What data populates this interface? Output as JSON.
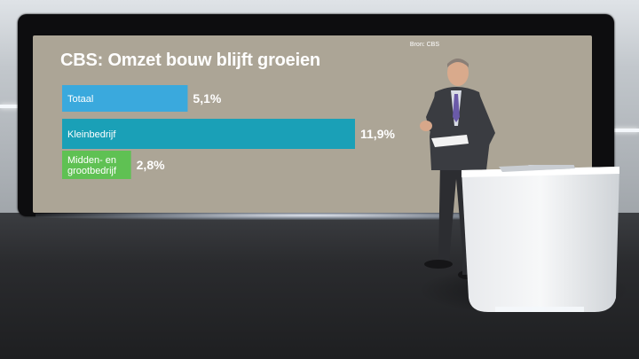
{
  "chart_data": {
    "type": "bar",
    "orientation": "horizontal",
    "title": "CBS: Omzet bouw blijft groeien",
    "source": "Bron: CBS",
    "categories": [
      "Totaal",
      "Kleinbedrijf",
      "Midden- en grootbedrijf"
    ],
    "category_lines": [
      [
        "Totaal"
      ],
      [
        "Kleinbedrijf"
      ],
      [
        "Midden- en",
        "grootbedrijf"
      ]
    ],
    "values": [
      5.1,
      11.9,
      2.8
    ],
    "value_labels": [
      "5,1%",
      "11,9%",
      "2,8%"
    ],
    "unit": "%",
    "xlim": [
      0,
      11.9
    ],
    "grid": false,
    "legend": "none",
    "colors": {
      "background": "#aca596",
      "title": "#ffffff",
      "bars": [
        "#3aa9dd",
        "#1aa0b7",
        "#5fc153"
      ]
    }
  }
}
